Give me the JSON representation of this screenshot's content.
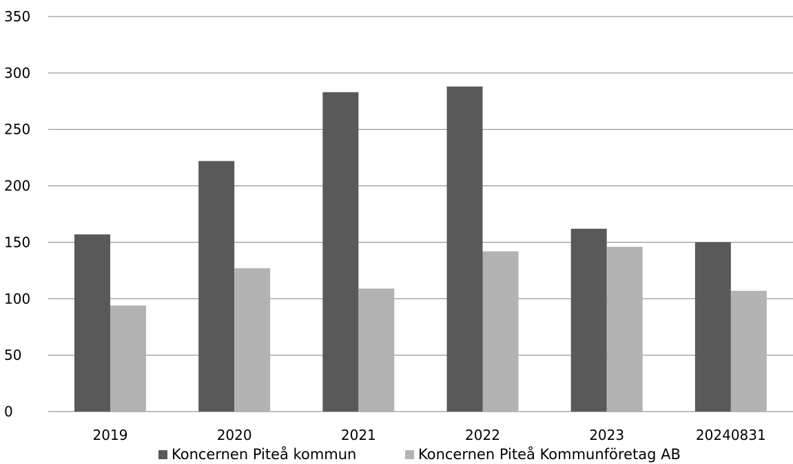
{
  "chart_data": {
    "type": "bar",
    "categories": [
      "2019",
      "2020",
      "2021",
      "2022",
      "2023",
      "20240831"
    ],
    "series": [
      {
        "name": "Koncernen Piteå kommun",
        "color": "#595959",
        "values": [
          157,
          222,
          283,
          288,
          162,
          150
        ]
      },
      {
        "name": "Koncernen Piteå Kommunföretag AB",
        "color": "#b3b3b3",
        "values": [
          94,
          127,
          109,
          142,
          146,
          107
        ]
      }
    ],
    "y_ticks": [
      "0",
      "50",
      "100",
      "150",
      "200",
      "250",
      "300",
      "350"
    ],
    "ylim": [
      0,
      350
    ],
    "grid": true,
    "gridline_color": "#7f7f7f",
    "legend_position": "bottom"
  }
}
